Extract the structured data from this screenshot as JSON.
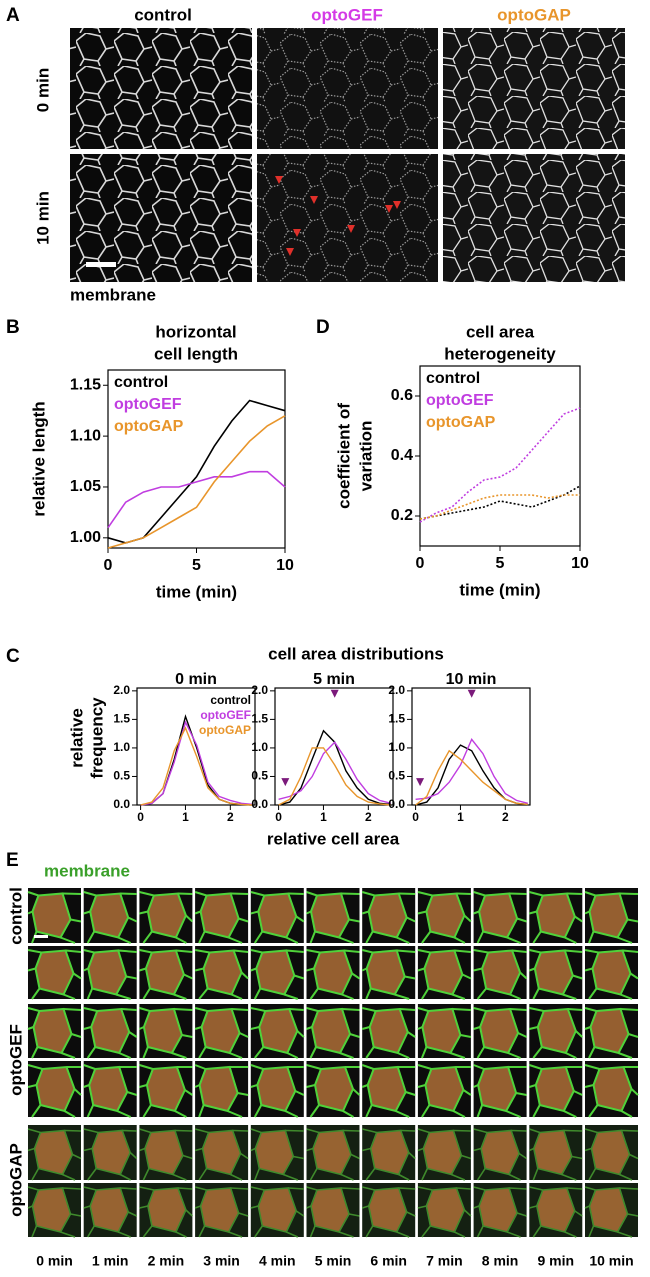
{
  "panel_labels": [
    "A",
    "B",
    "D",
    "C",
    "E"
  ],
  "panel_a": {
    "columns": [
      "control",
      "optoGEF",
      "optoGAP"
    ],
    "rows": [
      "0 min",
      "10 min"
    ],
    "caption": "membrane"
  },
  "panel_c": {
    "title": "cell area distributions",
    "ylabel": [
      "relative",
      "frequency"
    ],
    "xlabel": "relative cell area"
  },
  "panel_e": {
    "caption": "membrane",
    "rows": [
      "control",
      "optoGEF",
      "optoGAP"
    ],
    "times": [
      "0 min",
      "1 min",
      "2 min",
      "3 min",
      "4 min",
      "5 min",
      "6 min",
      "7 min",
      "8 min",
      "9 min",
      "10 min"
    ]
  },
  "chart_data": [
    {
      "type": "line",
      "title": [
        "horizontal",
        "cell length"
      ],
      "xlabel": "time (min)",
      "ylabel": "relative length",
      "x": [
        0,
        1,
        2,
        3,
        4,
        5,
        6,
        7,
        8,
        9,
        10
      ],
      "xlim": [
        0,
        10
      ],
      "xticks": [
        0,
        5,
        10
      ],
      "ylim": [
        0.99,
        1.165
      ],
      "yticks": [
        {
          "value": 1,
          "label": "1.00"
        },
        1.05,
        {
          "value": 1.1,
          "label": "1.10"
        },
        1.15
      ],
      "legend": "upper left",
      "series": [
        {
          "name": "control",
          "color": "#000000",
          "values": [
            1.0,
            0.995,
            1.0,
            1.02,
            1.04,
            1.06,
            1.09,
            1.115,
            1.135,
            1.13,
            1.125
          ]
        },
        {
          "name": "optoGEF",
          "color": "#c03de0",
          "values": [
            1.01,
            1.035,
            1.045,
            1.05,
            1.05,
            1.055,
            1.06,
            1.06,
            1.065,
            1.065,
            1.05
          ]
        },
        {
          "name": "optoGAP",
          "color": "#e8952b",
          "values": [
            0.99,
            0.995,
            1.0,
            1.01,
            1.02,
            1.03,
            1.055,
            1.075,
            1.095,
            1.11,
            1.12
          ]
        }
      ]
    },
    {
      "type": "line",
      "title": [
        "cell area",
        "heterogeneity"
      ],
      "xlabel": "time (min)",
      "ylabel": [
        "coefficient of",
        "variation"
      ],
      "x": [
        0,
        1,
        2,
        3,
        4,
        5,
        6,
        7,
        8,
        9,
        10
      ],
      "xlim": [
        0,
        10
      ],
      "xticks": [
        0,
        5,
        10
      ],
      "ylim": [
        0.1,
        0.7
      ],
      "yticks": [
        0.2,
        0.4,
        0.6
      ],
      "legend": "upper left",
      "dotted": true,
      "series": [
        {
          "name": "control",
          "color": "#000000",
          "values": [
            0.19,
            0.2,
            0.21,
            0.22,
            0.23,
            0.25,
            0.24,
            0.23,
            0.25,
            0.27,
            0.3
          ]
        },
        {
          "name": "optoGEF",
          "color": "#c03de0",
          "values": [
            0.18,
            0.21,
            0.23,
            0.28,
            0.32,
            0.33,
            0.36,
            0.42,
            0.48,
            0.54,
            0.56
          ]
        },
        {
          "name": "optoGAP",
          "color": "#e8952b",
          "values": [
            0.19,
            0.2,
            0.22,
            0.24,
            0.26,
            0.27,
            0.27,
            0.27,
            0.26,
            0.27,
            0.27
          ]
        }
      ]
    },
    {
      "type": "line",
      "title": "0 min",
      "legend": "upper right",
      "x": [
        0,
        0.25,
        0.5,
        0.75,
        1,
        1.25,
        1.5,
        1.75,
        2,
        2.25,
        2.5
      ],
      "xlim": [
        -0.08,
        2.55
      ],
      "xticks": [
        0,
        1,
        2
      ],
      "ylim": [
        0,
        2.05
      ],
      "yticks": [
        {
          "value": 0,
          "label": "0.0"
        },
        0.5,
        {
          "value": 1,
          "label": "1.0"
        },
        1.5,
        {
          "value": 2,
          "label": "2.0"
        }
      ],
      "series": [
        {
          "name": "control",
          "color": "#000000",
          "values": [
            0,
            0.03,
            0.2,
            0.8,
            1.55,
            1.0,
            0.35,
            0.1,
            0.03,
            0.01,
            0
          ]
        },
        {
          "name": "optoGEF",
          "color": "#c03de0",
          "values": [
            0,
            0.03,
            0.2,
            0.75,
            1.45,
            1.05,
            0.4,
            0.15,
            0.08,
            0.03,
            0.01
          ]
        },
        {
          "name": "optoGAP",
          "color": "#e8952b",
          "values": [
            0,
            0.05,
            0.3,
            0.95,
            1.35,
            0.85,
            0.3,
            0.1,
            0.03,
            0.01,
            0
          ]
        }
      ]
    },
    {
      "type": "line",
      "title": "5 min",
      "x": [
        0,
        0.25,
        0.5,
        0.75,
        1,
        1.25,
        1.5,
        1.75,
        2,
        2.25,
        2.5
      ],
      "xlim": [
        -0.08,
        2.55
      ],
      "xticks": [
        0,
        1,
        2
      ],
      "ylim": [
        0,
        2.05
      ],
      "yticks": [
        {
          "value": 0,
          "label": "0.0"
        },
        0.5,
        {
          "value": 1,
          "label": "1.0"
        },
        1.5,
        {
          "value": 2,
          "label": "2.0"
        }
      ],
      "annotations": [
        {
          "x": 1.25,
          "y": 1.95,
          "color": "#7b1a7b"
        },
        {
          "x": 0.15,
          "y": 0.4,
          "color": "#7b1a7b"
        }
      ],
      "series": [
        {
          "name": "control",
          "color": "#000000",
          "values": [
            0,
            0.05,
            0.3,
            0.8,
            1.3,
            1.1,
            0.6,
            0.3,
            0.1,
            0.03,
            0.01
          ]
        },
        {
          "name": "optoGEF",
          "color": "#c03de0",
          "values": [
            0.1,
            0.15,
            0.25,
            0.5,
            0.9,
            1.1,
            0.8,
            0.45,
            0.2,
            0.08,
            0.03
          ]
        },
        {
          "name": "optoGAP",
          "color": "#e8952b",
          "values": [
            0,
            0.1,
            0.5,
            1.0,
            1.0,
            0.7,
            0.35,
            0.15,
            0.05,
            0.02,
            0
          ]
        }
      ]
    },
    {
      "type": "line",
      "title": "10 min",
      "x": [
        0,
        0.25,
        0.5,
        0.75,
        1,
        1.25,
        1.5,
        1.75,
        2,
        2.25,
        2.5
      ],
      "xlim": [
        -0.08,
        2.55
      ],
      "xticks": [
        0,
        1,
        2
      ],
      "ylim": [
        0,
        2.05
      ],
      "yticks": [
        {
          "value": 0,
          "label": "0.0"
        },
        0.5,
        {
          "value": 1,
          "label": "1.0"
        },
        1.5,
        {
          "value": 2,
          "label": "2.0"
        }
      ],
      "annotations": [
        {
          "x": 1.25,
          "y": 1.95,
          "color": "#7b1a7b"
        },
        {
          "x": 0.1,
          "y": 0.4,
          "color": "#7b1a7b"
        }
      ],
      "series": [
        {
          "name": "control",
          "color": "#000000",
          "values": [
            0,
            0.05,
            0.3,
            0.8,
            1.05,
            0.95,
            0.6,
            0.3,
            0.1,
            0.03,
            0.01
          ]
        },
        {
          "name": "optoGEF",
          "color": "#c03de0",
          "values": [
            0.1,
            0.12,
            0.2,
            0.4,
            0.7,
            1.15,
            0.9,
            0.5,
            0.2,
            0.08,
            0.03
          ]
        },
        {
          "name": "optoGAP",
          "color": "#e8952b",
          "values": [
            0,
            0.15,
            0.6,
            0.95,
            0.8,
            0.6,
            0.4,
            0.25,
            0.1,
            0.03,
            0.01
          ]
        }
      ]
    }
  ]
}
